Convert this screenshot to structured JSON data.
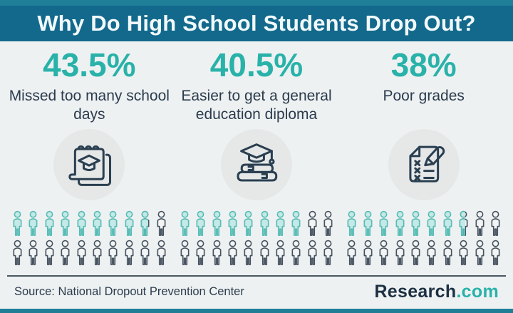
{
  "header": {
    "title": "Why Do High School Students Drop Out?"
  },
  "columns": [
    {
      "percent": "43.5%",
      "label": "Missed too many school days",
      "icon": "notepad-graduation-cap-icon",
      "pictogram": {
        "total": 20,
        "filled": 8.7,
        "per_row": 10
      }
    },
    {
      "percent": "40.5%",
      "label": "Easier to get a general education diploma",
      "icon": "books-graduation-cap-icon",
      "pictogram": {
        "total": 20,
        "filled": 8.1,
        "per_row": 10
      }
    },
    {
      "percent": "38%",
      "label": "Poor grades",
      "icon": "failed-test-pen-icon",
      "pictogram": {
        "total": 20,
        "filled": 7.6,
        "per_row": 10
      }
    }
  ],
  "footer": {
    "source": "Source: National Dropout Prevention Center",
    "brand": {
      "name": "Research",
      "tld": ".com"
    }
  },
  "chart_data": {
    "type": "bar",
    "variant": "pictograph",
    "title": "Why Do High School Students Drop Out?",
    "categories": [
      "Missed too many school days",
      "Easier to get a general education diploma",
      "Poor grades"
    ],
    "values": [
      43.5,
      40.5,
      38
    ],
    "unit": "%",
    "pictogram_icons_per_category": 20,
    "pictogram_icon_value_percent": 5,
    "source": "National Dropout Prevention Center",
    "legend": "off",
    "grid": "off"
  },
  "colors": {
    "frame_teal": "#1f7f98",
    "header_bg": "#12698c",
    "header_text": "#f2f9fa",
    "page_bg": "#eef1f2",
    "accent_teal": "#29b2a9",
    "text_dark": "#2b3c4d",
    "icon_circle_bg": "#e6e8e8",
    "icon_stroke": "#2a3f50",
    "person_fill_stroke": "#57bcb5",
    "person_fill_fill": "#c4e9e6",
    "person_empty_stroke": "#45525e",
    "person_empty_fill": "#f3f5f5",
    "divider": "#4a5761",
    "brand_dark": "#1c3042",
    "brand_teal": "#29b2a9"
  }
}
